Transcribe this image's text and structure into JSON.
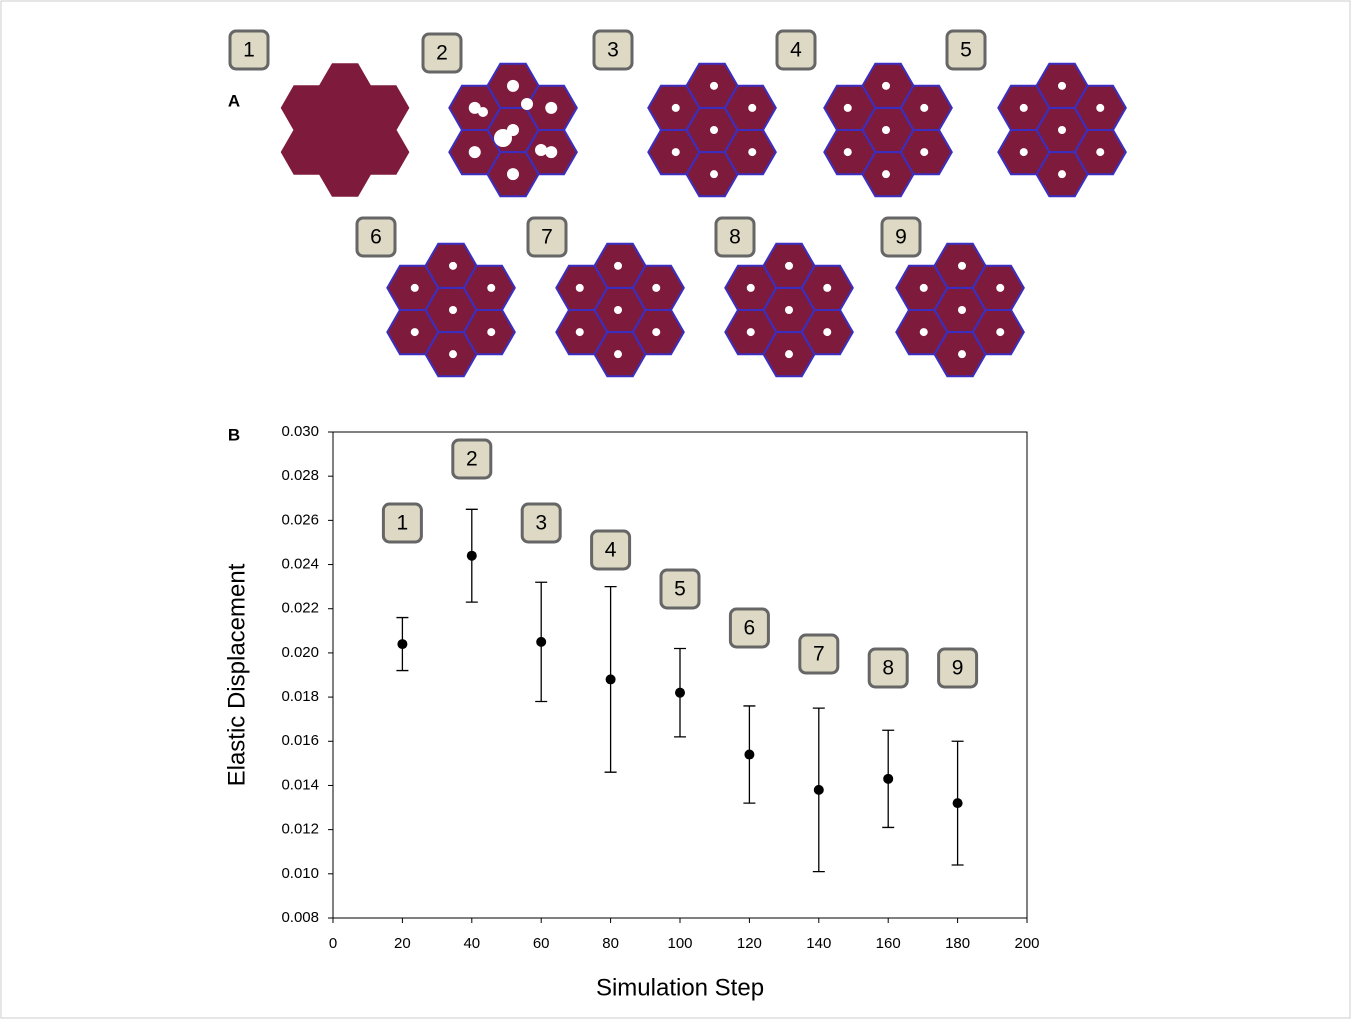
{
  "panel_a": {
    "label": "A",
    "image_labels": [
      "1",
      "2",
      "3",
      "4",
      "5",
      "6",
      "7",
      "8",
      "9"
    ]
  },
  "chart_data": {
    "type": "scatter",
    "panel_label": "B",
    "x_label": "Simulation Step",
    "y_label": "Elastic Displacement",
    "x": [
      20,
      40,
      60,
      80,
      100,
      120,
      140,
      160,
      180
    ],
    "series": [
      {
        "color": "#000000",
        "values": [
          0.0204,
          0.0244,
          0.0205,
          0.0188,
          0.0182,
          0.0154,
          0.0138,
          0.0143,
          0.0132
        ],
        "errors": [
          0.0012,
          0.0021,
          0.0027,
          0.0042,
          0.002,
          0.0022,
          0.0037,
          0.0022,
          0.0028
        ]
      }
    ],
    "annotations": [
      "1",
      "2",
      "3",
      "4",
      "5",
      "6",
      "7",
      "8",
      "9"
    ],
    "xlim": [
      0,
      200
    ],
    "xticks": [
      0,
      20,
      40,
      60,
      80,
      100,
      120,
      140,
      160,
      180,
      200
    ],
    "ylim": [
      0.008,
      0.03
    ],
    "yticks": [
      0.008,
      {
        "value": 0.01,
        "label": "0.010"
      },
      0.012,
      0.014,
      0.016,
      0.018,
      {
        "value": 0.02,
        "label": "0.020"
      },
      0.022,
      0.024,
      0.026,
      0.028,
      {
        "value": 0.03,
        "label": "0.030"
      }
    ]
  }
}
